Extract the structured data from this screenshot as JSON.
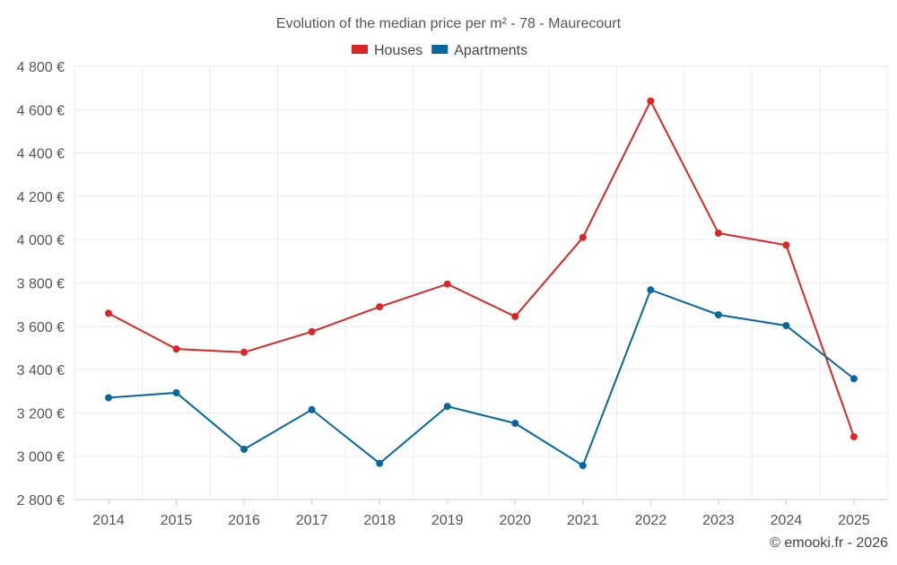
{
  "chart_data": {
    "type": "line",
    "title": "Evolution of the median price per m² - 78 - Maurecourt",
    "categories": [
      "2014",
      "2015",
      "2016",
      "2017",
      "2018",
      "2019",
      "2020",
      "2021",
      "2022",
      "2023",
      "2024",
      "2025"
    ],
    "series": [
      {
        "name": "Houses",
        "color": "#dc2626",
        "values": [
          3660,
          3495,
          3480,
          3575,
          3690,
          3795,
          3645,
          4010,
          4640,
          4030,
          3975,
          3090
        ]
      },
      {
        "name": "Apartments",
        "color": "#05679e",
        "values": [
          3270,
          3293,
          3032,
          3215,
          2967,
          3230,
          3152,
          2957,
          3768,
          3653,
          3603,
          3358
        ]
      }
    ],
    "ylim": [
      2800,
      4800
    ],
    "yticks": [
      2800,
      3000,
      3200,
      3400,
      3600,
      3800,
      4000,
      4200,
      4400,
      4600,
      4800
    ],
    "ytick_labels": [
      "2 800 €",
      "3 000 €",
      "3 200 €",
      "3 400 €",
      "3 600 €",
      "3 800 €",
      "4 000 €",
      "4 200 €",
      "4 400 €",
      "4 600 €",
      "4 800 €"
    ],
    "xlabel": "",
    "ylabel": "",
    "grid": true,
    "legend": "top-center"
  },
  "credit": "© emooki.fr - 2026"
}
